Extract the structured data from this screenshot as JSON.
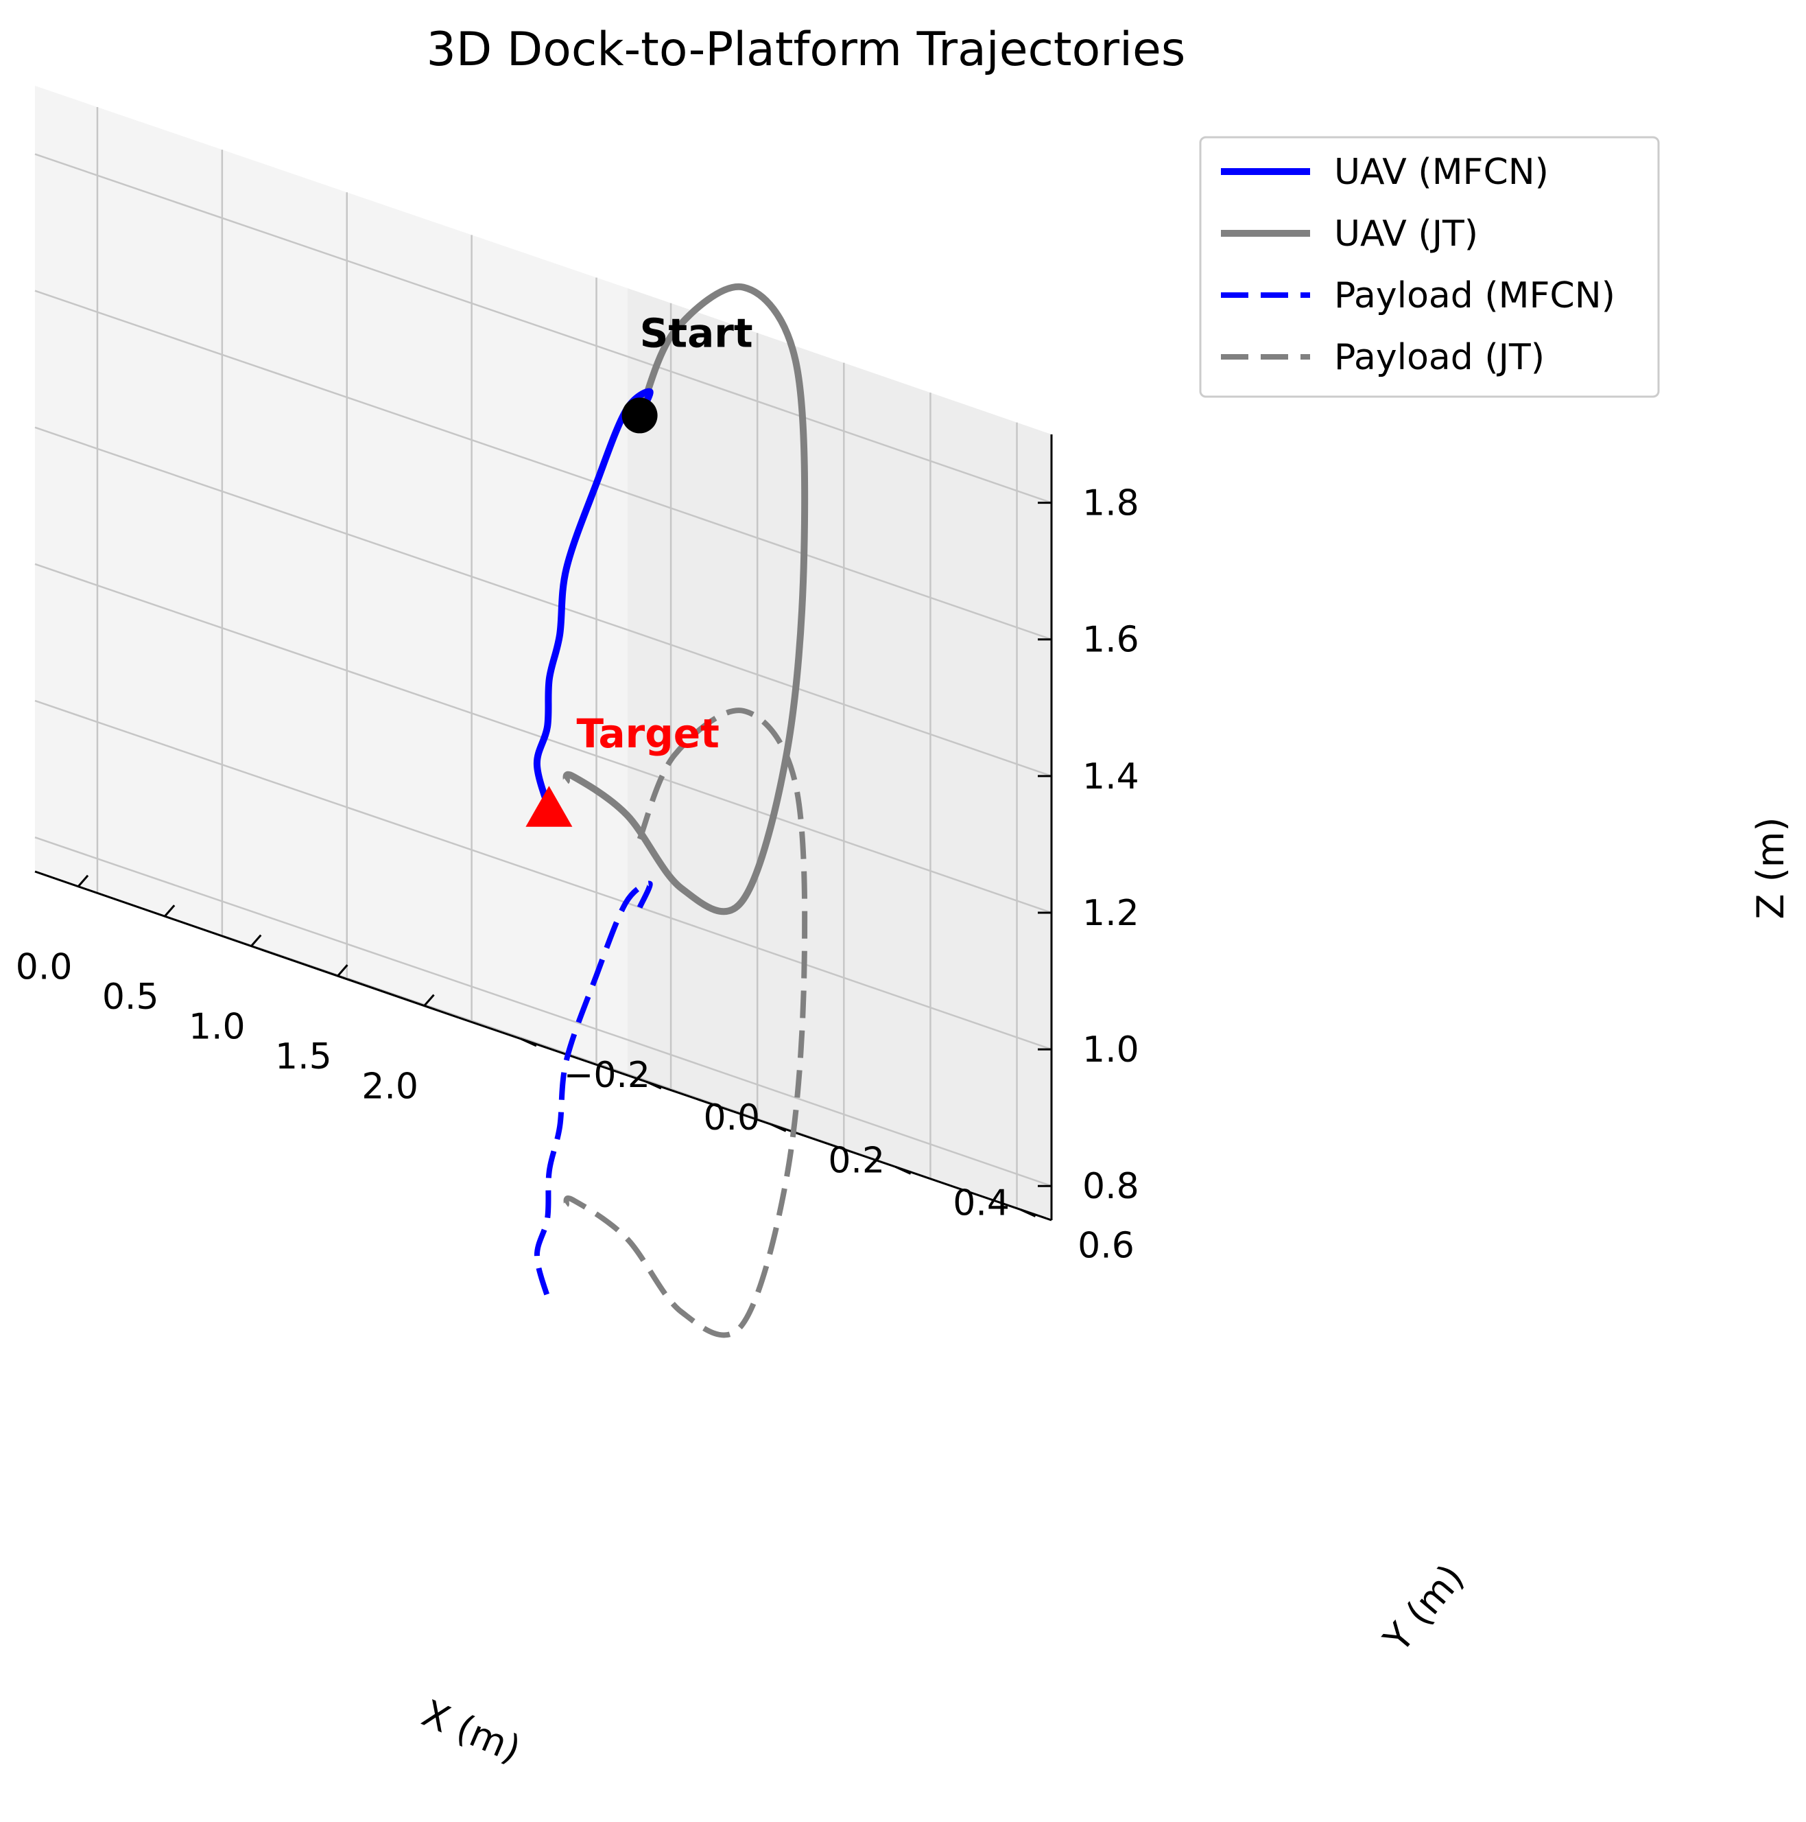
{
  "chart_data": {
    "type": "line3d",
    "title": "3D Dock-to-Platform Trajectories",
    "xlabel": "X (m)",
    "ylabel": "Y (m)",
    "zlabel": "Z (m)",
    "xlim": [
      -0.25,
      2.2
    ],
    "ylim": [
      -0.3,
      0.65
    ],
    "zlim": [
      0.75,
      1.9
    ],
    "x_ticks": [
      0.0,
      0.5,
      1.0,
      1.5,
      2.0
    ],
    "x_tick_labels": [
      "0.0",
      "0.5",
      "1.0",
      "1.5",
      "2.0"
    ],
    "y_ticks": [
      -0.2,
      0.0,
      0.2,
      0.4,
      0.6
    ],
    "y_tick_labels": [
      "−0.2",
      "0.0",
      "0.2",
      "0.4",
      "0.6"
    ],
    "z_ticks": [
      0.8,
      1.0,
      1.2,
      1.4,
      1.6,
      1.8
    ],
    "z_tick_labels": [
      "0.8",
      "1.0",
      "1.2",
      "1.4",
      "1.6",
      "1.8"
    ],
    "grid": true,
    "legend_position": "top-right",
    "series": [
      {
        "name": "UAV (MFCN)",
        "color": "#0000ff",
        "style": "solid",
        "points": [
          [
            0.0,
            0.6,
            1.72
          ],
          [
            0.13,
            0.58,
            1.76
          ],
          [
            0.28,
            0.5,
            1.72
          ],
          [
            0.4,
            0.42,
            1.6
          ],
          [
            0.55,
            0.33,
            1.46
          ],
          [
            0.8,
            0.25,
            1.36
          ],
          [
            1.1,
            0.15,
            1.29
          ],
          [
            1.45,
            0.05,
            1.22
          ],
          [
            1.75,
            -0.05,
            1.16
          ],
          [
            2.0,
            -0.1,
            1.1
          ]
        ]
      },
      {
        "name": "UAV (JT)",
        "color": "#808080",
        "style": "solid",
        "points": [
          [
            0.0,
            0.6,
            1.72
          ],
          [
            0.2,
            0.6,
            1.86
          ],
          [
            0.6,
            0.6,
            1.96
          ],
          [
            0.9,
            0.6,
            1.88
          ],
          [
            0.95,
            0.6,
            1.6
          ],
          [
            0.85,
            0.6,
            1.3
          ],
          [
            0.95,
            0.5,
            1.06
          ],
          [
            1.25,
            0.32,
            1.05
          ],
          [
            1.55,
            0.15,
            1.13
          ],
          [
            1.85,
            -0.02,
            1.16
          ],
          [
            2.1,
            -0.1,
            1.15
          ]
        ]
      },
      {
        "name": "Payload (MFCN)",
        "color": "#0000ff",
        "style": "dashed",
        "points": [
          [
            0.0,
            0.6,
            1.0
          ],
          [
            0.13,
            0.58,
            1.04
          ],
          [
            0.28,
            0.5,
            1.0
          ],
          [
            0.4,
            0.42,
            0.88
          ],
          [
            0.55,
            0.33,
            0.74
          ],
          [
            0.8,
            0.25,
            0.64
          ],
          [
            1.1,
            0.15,
            0.57
          ],
          [
            1.45,
            0.05,
            0.5
          ],
          [
            1.75,
            -0.05,
            0.44
          ],
          [
            2.0,
            -0.1,
            0.38
          ]
        ]
      },
      {
        "name": "Payload (JT)",
        "color": "#808080",
        "style": "dashed",
        "points": [
          [
            0.0,
            0.6,
            1.1
          ],
          [
            0.2,
            0.6,
            1.24
          ],
          [
            0.6,
            0.6,
            1.34
          ],
          [
            0.9,
            0.6,
            1.26
          ],
          [
            0.95,
            0.6,
            0.98
          ],
          [
            0.85,
            0.6,
            0.68
          ],
          [
            0.95,
            0.5,
            0.44
          ],
          [
            1.25,
            0.32,
            0.43
          ],
          [
            1.55,
            0.15,
            0.51
          ],
          [
            1.85,
            -0.02,
            0.54
          ],
          [
            2.1,
            -0.1,
            0.53
          ]
        ]
      }
    ],
    "markers": [
      {
        "label": "Start",
        "shape": "circle",
        "color": "#000000",
        "point": [
          0.0,
          0.6,
          1.72
        ]
      },
      {
        "label": "Target",
        "shape": "triangle",
        "color": "#ff0000",
        "point": [
          2.0,
          -0.1,
          1.1
        ]
      }
    ]
  }
}
